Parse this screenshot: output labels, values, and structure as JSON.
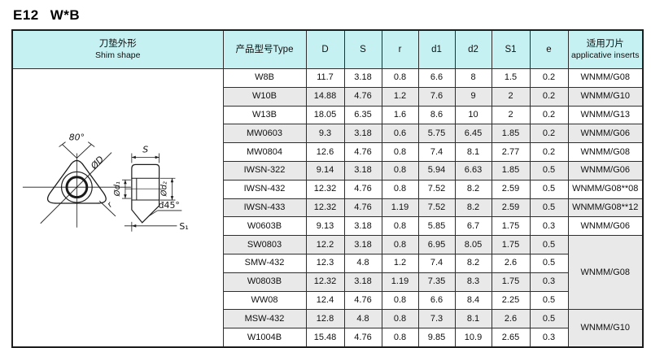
{
  "page": {
    "title_left": "E12",
    "title_right": "W*B"
  },
  "table": {
    "shim_header": {
      "zh": "刀垫外形",
      "en": "Shim shape"
    },
    "col_type": "产品型号Type",
    "col_D": "D",
    "col_S": "S",
    "col_r": "r",
    "col_d1": "d1",
    "col_d2": "d2",
    "col_S1": "S1",
    "col_e": "e",
    "col_inserts_zh": "适用刀片",
    "col_inserts_en": "applicative inserts",
    "rows": [
      {
        "type": "W8B",
        "D": "11.7",
        "S": "3.18",
        "r": "0.8",
        "d1": "6.6",
        "d2": "8",
        "S1": "1.5",
        "e": "0.2",
        "insert": "WNMM/G08",
        "insert_span": 1
      },
      {
        "type": "W10B",
        "D": "14.88",
        "S": "4.76",
        "r": "1.2",
        "d1": "7.6",
        "d2": "9",
        "S1": "2",
        "e": "0.2",
        "insert": "WNMM/G10",
        "insert_span": 1
      },
      {
        "type": "W13B",
        "D": "18.05",
        "S": "6.35",
        "r": "1.6",
        "d1": "8.6",
        "d2": "10",
        "S1": "2",
        "e": "0.2",
        "insert": "WNMM/G13",
        "insert_span": 1
      },
      {
        "type": "MW0603",
        "D": "9.3",
        "S": "3.18",
        "r": "0.6",
        "d1": "5.75",
        "d2": "6.45",
        "S1": "1.85",
        "e": "0.2",
        "insert": "WNMM/G06",
        "insert_span": 1
      },
      {
        "type": "MW0804",
        "D": "12.6",
        "S": "4.76",
        "r": "0.8",
        "d1": "7.4",
        "d2": "8.1",
        "S1": "2.77",
        "e": "0.2",
        "insert": "WNMM/G08",
        "insert_span": 1
      },
      {
        "type": "IWSN-322",
        "D": "9.14",
        "S": "3.18",
        "r": "0.8",
        "d1": "5.94",
        "d2": "6.63",
        "S1": "1.85",
        "e": "0.5",
        "insert": "WNMM/G06",
        "insert_span": 1
      },
      {
        "type": "IWSN-432",
        "D": "12.32",
        "S": "4.76",
        "r": "0.8",
        "d1": "7.52",
        "d2": "8.2",
        "S1": "2.59",
        "e": "0.5",
        "insert": "WNMM/G08**08",
        "insert_span": 1
      },
      {
        "type": "IWSN-433",
        "D": "12.32",
        "S": "4.76",
        "r": "1.19",
        "d1": "7.52",
        "d2": "8.2",
        "S1": "2.59",
        "e": "0.5",
        "insert": "WNMM/G08**12",
        "insert_span": 1
      },
      {
        "type": "W0603B",
        "D": "9.13",
        "S": "3.18",
        "r": "0.8",
        "d1": "5.85",
        "d2": "6.7",
        "S1": "1.75",
        "e": "0.3",
        "insert": "WNMM/G06",
        "insert_span": 1
      },
      {
        "type": "SW0803",
        "D": "12.2",
        "S": "3.18",
        "r": "0.8",
        "d1": "6.95",
        "d2": "8.05",
        "S1": "1.75",
        "e": "0.5",
        "insert": "WNMM/G08",
        "insert_span": 4
      },
      {
        "type": "SMW-432",
        "D": "12.3",
        "S": "4.8",
        "r": "1.2",
        "d1": "7.4",
        "d2": "8.2",
        "S1": "2.6",
        "e": "0.5",
        "insert": null
      },
      {
        "type": "W0803B",
        "D": "12.32",
        "S": "3.18",
        "r": "1.19",
        "d1": "7.35",
        "d2": "8.3",
        "S1": "1.75",
        "e": "0.3",
        "insert": null
      },
      {
        "type": "WW08",
        "D": "12.4",
        "S": "4.76",
        "r": "0.8",
        "d1": "6.6",
        "d2": "8.4",
        "S1": "2.25",
        "e": "0.5",
        "insert": null
      },
      {
        "type": "MSW-432",
        "D": "12.8",
        "S": "4.8",
        "r": "0.8",
        "d1": "7.3",
        "d2": "8.1",
        "S1": "2.6",
        "e": "0.5",
        "insert": "WNMM/G10",
        "insert_span": 2
      },
      {
        "type": "W1004B",
        "D": "15.48",
        "S": "4.76",
        "r": "0.8",
        "d1": "9.85",
        "d2": "10.9",
        "S1": "2.65",
        "e": "0.3",
        "insert": null
      }
    ]
  },
  "diagram": {
    "front_view": {
      "angle": "80°",
      "diameter_label": "ØD",
      "corner_radius_label": "r"
    },
    "side_view": {
      "thickness_label": "S",
      "bore_label": "Ød₁",
      "counterbore_label": "Ød₂",
      "chamfer_label": "đ45°",
      "seat_label": "S₁"
    }
  },
  "colors": {
    "header_bg": "#c6f1f2",
    "row_stripe": "#e9e9e9",
    "border": "#2e2e2e"
  }
}
